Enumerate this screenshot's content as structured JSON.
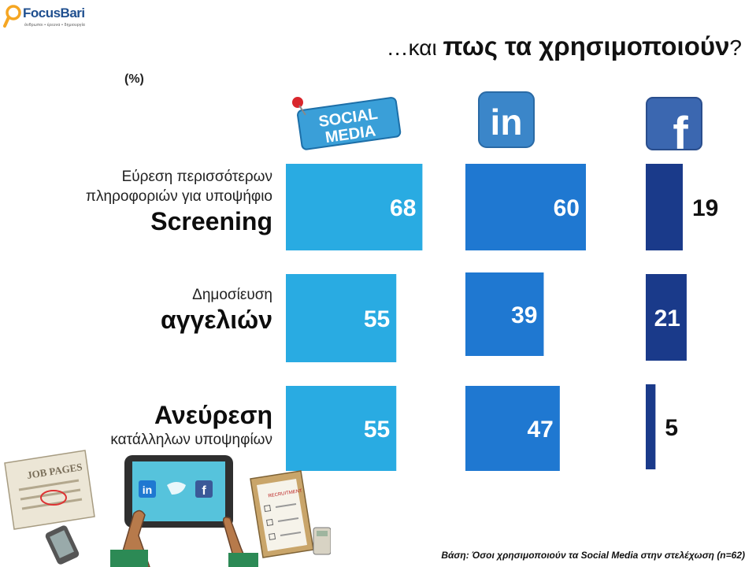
{
  "brand": {
    "name": "FocusBari",
    "tagline": "άνθρωποι • έρευνα • δημιουργία"
  },
  "title": {
    "prefix": "…και ",
    "main": "πως τα χρησιμοποιούν",
    "suffix": "?"
  },
  "unit_label": "(%)",
  "icons": {
    "social": "social-media-pin-icon",
    "linkedin": "linkedin-icon",
    "facebook": "facebook-icon"
  },
  "icon_text": {
    "social_line1": "SOCIAL",
    "social_line2": "MEDIA",
    "linkedin": "in",
    "facebook": "f"
  },
  "rows": [
    {
      "small_top": "Εύρεση περισσότερων",
      "small_mid": "πληροφοριών για υποψήφιο",
      "big": "Screening"
    },
    {
      "small_top": "Δημοσίευση",
      "big": "αγγελιών"
    },
    {
      "big": "Ανεύρεση",
      "small_bottom": "κατάλληλων υποψηφίων"
    }
  ],
  "colors": {
    "social_media": "#29abe2",
    "linkedin": "#1f78d1",
    "facebook": "#1a3a8a",
    "label_on_bar": "#ffffff",
    "label_outside": "#111111"
  },
  "chart_data": {
    "type": "bar",
    "orientation": "horizontal",
    "categories": [
      "Screening",
      "αγγελιών",
      "Ανεύρεση"
    ],
    "series": [
      {
        "name": "SOCIAL MEDIA",
        "values": [
          68,
          55,
          55
        ]
      },
      {
        "name": "LinkedIn",
        "values": [
          60,
          39,
          47
        ]
      },
      {
        "name": "Facebook",
        "values": [
          19,
          21,
          5
        ]
      }
    ],
    "title": "…και πως τα χρησιμοποιούν?",
    "xlabel": "",
    "ylabel": "(%)",
    "xlim": [
      0,
      100
    ],
    "grid": false,
    "legend": "none"
  },
  "footnote": "Βάση: Όσοι χρησιμοποιούν τα Social Media στην στελέχωση (n=62)",
  "illustration": {
    "job_pages": "JOB PAGES",
    "tablet_icons": [
      "in",
      "f"
    ],
    "clipboard_title": "RECRUITMENT"
  }
}
